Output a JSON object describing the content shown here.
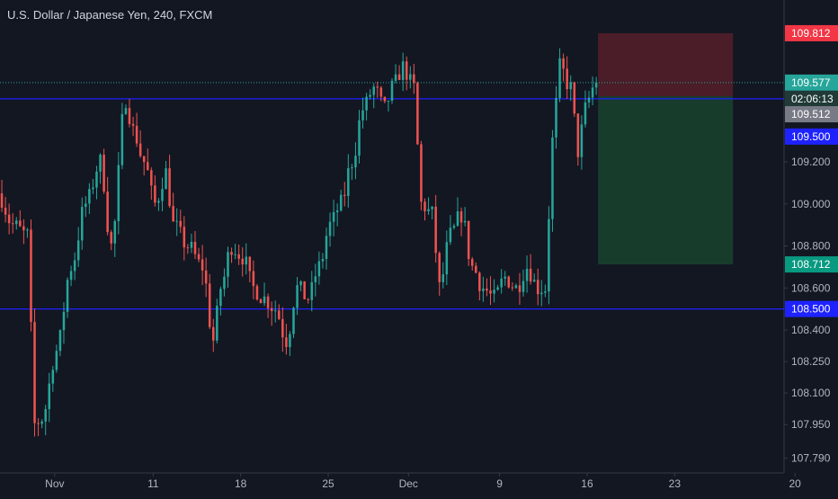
{
  "chart_data": {
    "type": "candlestick",
    "title": "U.S. Dollar / Japanese Yen, 240, FXCM",
    "timeframe": "240",
    "source": "FXCM",
    "x_axis": {
      "tick_labels": [
        "Nov",
        "11",
        "18",
        "25",
        "Dec",
        "9",
        "16",
        "23",
        "20"
      ]
    },
    "y_axis": {
      "tick_labels": [
        "109.200",
        "109.000",
        "108.800",
        "108.600",
        "108.400",
        "108.250",
        "108.100",
        "107.950",
        "107.790"
      ]
    },
    "price_labels": {
      "target": "109.812",
      "last_price": "109.577",
      "countdown": "02:06:13",
      "entry": "109.512",
      "resistance": "109.500",
      "stop": "108.712",
      "support": "108.500"
    },
    "levels": {
      "resistance": 109.5,
      "support": 108.5,
      "last_price": 109.577,
      "position_top": 109.812,
      "position_entry": 109.512,
      "position_bottom": 108.712
    },
    "y_range": [
      107.72,
      109.97
    ],
    "x_range": [
      0,
      215
    ],
    "tick_positions": {
      "x": [
        15,
        42,
        66,
        90,
        112,
        137,
        161,
        185,
        218
      ],
      "y": [
        109.2,
        109.0,
        108.8,
        108.6,
        108.4,
        108.25,
        108.1,
        107.95,
        107.79
      ]
    },
    "position": {
      "bar_start": 164,
      "bar_end": 201
    },
    "anchors": [
      [
        0,
        109.05
      ],
      [
        4,
        108.9
      ],
      [
        8,
        108.85
      ],
      [
        10,
        107.95
      ],
      [
        12,
        107.98
      ],
      [
        16,
        108.3
      ],
      [
        20,
        108.7
      ],
      [
        24,
        109.0
      ],
      [
        28,
        109.2
      ],
      [
        31,
        108.8
      ],
      [
        35,
        109.5
      ],
      [
        37,
        109.35
      ],
      [
        40,
        109.2
      ],
      [
        43,
        109.0
      ],
      [
        46,
        109.15
      ],
      [
        48,
        108.9
      ],
      [
        52,
        108.8
      ],
      [
        56,
        108.7
      ],
      [
        59,
        108.35
      ],
      [
        61,
        108.6
      ],
      [
        64,
        108.8
      ],
      [
        67,
        108.75
      ],
      [
        70,
        108.6
      ],
      [
        73,
        108.55
      ],
      [
        76,
        108.5
      ],
      [
        79,
        108.35
      ],
      [
        82,
        108.6
      ],
      [
        85,
        108.55
      ],
      [
        88,
        108.7
      ],
      [
        91,
        108.9
      ],
      [
        94,
        109.0
      ],
      [
        97,
        109.2
      ],
      [
        100,
        109.45
      ],
      [
        103,
        109.55
      ],
      [
        106,
        109.45
      ],
      [
        108,
        109.55
      ],
      [
        111,
        109.65
      ],
      [
        114,
        109.55
      ],
      [
        116,
        109.0
      ],
      [
        119,
        108.95
      ],
      [
        121,
        108.6
      ],
      [
        124,
        108.85
      ],
      [
        127,
        108.95
      ],
      [
        130,
        108.7
      ],
      [
        133,
        108.6
      ],
      [
        136,
        108.55
      ],
      [
        139,
        108.65
      ],
      [
        142,
        108.6
      ],
      [
        145,
        108.7
      ],
      [
        148,
        108.6
      ],
      [
        150,
        108.6
      ],
      [
        152,
        109.3
      ],
      [
        154,
        109.65
      ],
      [
        157,
        109.55
      ],
      [
        159,
        109.25
      ],
      [
        161,
        109.45
      ],
      [
        163,
        109.55
      ]
    ]
  }
}
